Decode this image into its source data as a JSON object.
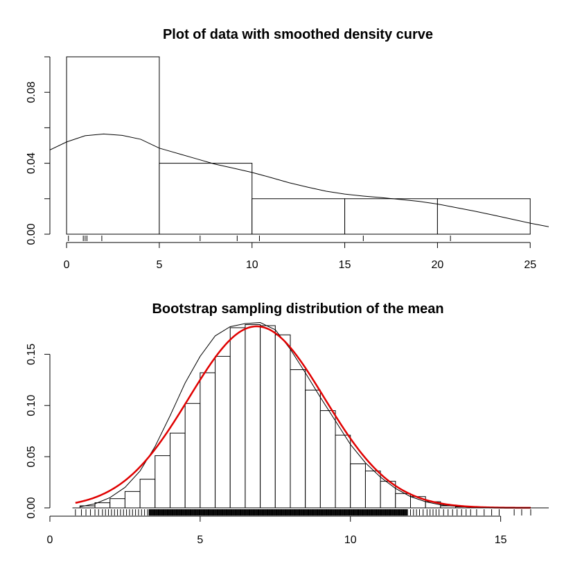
{
  "chart_data": [
    {
      "type": "histogram",
      "title": "Plot of data with smoothed density curve",
      "xlabel": "",
      "ylabel": "",
      "xlim": [
        -0.9,
        26
      ],
      "ylim": [
        0,
        0.1
      ],
      "x_ticks": [
        0,
        5,
        10,
        15,
        20,
        25
      ],
      "y_ticks": [
        0.0,
        0.04,
        0.08
      ],
      "y_tick_labels": [
        "0.00",
        "0.04",
        "0.08"
      ],
      "bins": [
        {
          "x0": 0,
          "x1": 5,
          "density": 0.1
        },
        {
          "x0": 5,
          "x1": 10,
          "density": 0.04
        },
        {
          "x0": 10,
          "x1": 15,
          "density": 0.02
        },
        {
          "x0": 15,
          "x1": 20,
          "density": 0.02
        },
        {
          "x0": 20,
          "x1": 25,
          "density": 0.02
        }
      ],
      "density_curve": {
        "x": [
          -1,
          0,
          1,
          2,
          3,
          4,
          5,
          6,
          7,
          8,
          9,
          10,
          11,
          12,
          13,
          14,
          15,
          16,
          17,
          18,
          19,
          20,
          21,
          22,
          23,
          24,
          25,
          26
        ],
        "y": [
          0.047,
          0.052,
          0.0555,
          0.0565,
          0.0557,
          0.0535,
          0.0485,
          0.0455,
          0.0425,
          0.0395,
          0.0372,
          0.0348,
          0.032,
          0.029,
          0.0265,
          0.0242,
          0.0226,
          0.0215,
          0.0206,
          0.0196,
          0.0185,
          0.017,
          0.015,
          0.013,
          0.0108,
          0.0085,
          0.0062,
          0.0042
        ]
      },
      "rug": [
        0.1,
        0.9,
        1.0,
        1.1,
        1.9,
        7.2,
        9.2,
        10.4,
        16.0,
        20.7
      ]
    },
    {
      "type": "histogram",
      "title": "Bootstrap sampling distribution of the mean",
      "xlabel": "",
      "ylabel": "",
      "xlim": [
        0,
        16.6
      ],
      "ylim": [
        0,
        0.178
      ],
      "x_ticks": [
        0,
        5,
        10,
        15
      ],
      "y_ticks": [
        0.0,
        0.05,
        0.1,
        0.15
      ],
      "y_tick_labels": [
        "0.00",
        "0.05",
        "0.10",
        "0.15"
      ],
      "bin_width": 0.5,
      "bins_start": 1.0,
      "densities": [
        0.002,
        0.005,
        0.009,
        0.016,
        0.028,
        0.051,
        0.073,
        0.102,
        0.132,
        0.148,
        0.176,
        0.179,
        0.178,
        0.169,
        0.135,
        0.115,
        0.095,
        0.071,
        0.043,
        0.036,
        0.026,
        0.014,
        0.011,
        0.006,
        0.002,
        0.001,
        0.0005,
        0.0005
      ],
      "kernel_curve": {
        "x": [
          1.0,
          1.5,
          2.0,
          2.5,
          3.0,
          3.5,
          4.0,
          4.5,
          5.0,
          5.5,
          6.0,
          6.5,
          7.0,
          7.5,
          8.0,
          8.5,
          9.0,
          9.5,
          10.0,
          10.5,
          11.0,
          11.5,
          12.0,
          12.5,
          13.0,
          13.5,
          14.0,
          14.5,
          15.0
        ],
        "y": [
          0.001,
          0.004,
          0.01,
          0.02,
          0.036,
          0.06,
          0.09,
          0.122,
          0.148,
          0.168,
          0.177,
          0.18,
          0.181,
          0.174,
          0.155,
          0.132,
          0.108,
          0.085,
          0.062,
          0.044,
          0.03,
          0.019,
          0.011,
          0.006,
          0.003,
          0.0015,
          0.0007,
          0.0003,
          0.0001
        ]
      },
      "normal_curve": {
        "mean": 6.88,
        "sd": 2.25,
        "x_range": [
          0.85,
          16.0
        ],
        "color": "#e00000"
      },
      "rug": {
        "dense_range": [
          3.3,
          11.9
        ],
        "sparse": [
          0.85,
          1.05,
          1.2,
          1.35,
          1.5,
          1.62,
          1.75,
          1.85,
          1.95,
          2.05,
          2.15,
          2.25,
          2.35,
          2.45,
          2.55,
          2.65,
          2.75,
          2.85,
          2.95,
          3.05,
          3.15,
          3.25,
          12.0,
          12.1,
          12.2,
          12.3,
          12.42,
          12.55,
          12.65,
          12.75,
          12.85,
          12.95,
          13.1,
          13.25,
          13.4,
          13.55,
          13.7,
          13.85,
          14.0,
          14.2,
          14.45,
          14.7,
          14.95,
          15.45,
          15.7,
          16.0
        ]
      }
    }
  ]
}
